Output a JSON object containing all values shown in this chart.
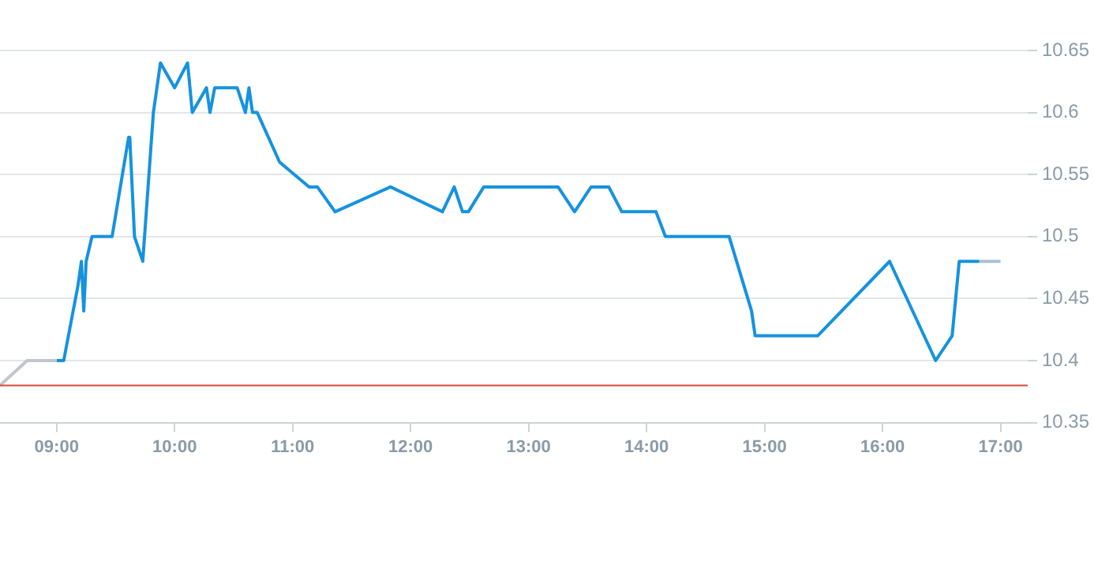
{
  "chart_data": {
    "type": "line",
    "legend": false,
    "grid": "y",
    "marker": "none",
    "line_style": "solid",
    "xlim": [
      8.52,
      17.23
    ],
    "ylim": [
      10.35,
      10.65
    ],
    "xticks": [
      {
        "value": 9,
        "label": "09:00"
      },
      {
        "value": 10,
        "label": "10:00"
      },
      {
        "value": 11,
        "label": "11:00"
      },
      {
        "value": 12,
        "label": "12:00"
      },
      {
        "value": 13,
        "label": "13:00"
      },
      {
        "value": 14,
        "label": "14:00"
      },
      {
        "value": 15,
        "label": "15:00"
      },
      {
        "value": 16,
        "label": "16:00"
      },
      {
        "value": 17,
        "label": "17:00"
      }
    ],
    "yticks": [
      10.35,
      10.4,
      10.45,
      10.5,
      10.55,
      10.6,
      10.65
    ],
    "ref_lines": [
      {
        "axis": "y",
        "value": 10.38,
        "color": "#d9443c"
      }
    ],
    "series": [
      {
        "color": "#c2c6cc",
        "x": [
          8.52,
          8.75,
          9.0
        ],
        "values": [
          10.38,
          10.4,
          10.4
        ]
      },
      {
        "color": "#1592e0",
        "x": [
          9.0,
          9.06,
          9.18,
          9.21,
          9.23,
          9.25,
          9.3,
          9.47,
          9.61,
          9.62,
          9.66,
          9.73,
          9.82,
          9.88,
          10.0,
          10.11,
          10.15,
          10.27,
          10.3,
          10.34,
          10.53,
          10.6,
          10.63,
          10.66,
          10.7,
          10.89,
          11.14,
          11.21,
          11.36,
          11.83,
          12.27,
          12.37,
          12.44,
          12.49,
          12.62,
          13.25,
          13.39,
          13.53,
          13.68,
          13.79,
          14.08,
          14.16,
          14.7,
          14.89,
          14.92,
          15.45,
          16.06,
          16.45,
          16.59,
          16.65,
          16.82
        ],
        "values": [
          10.4,
          10.4,
          10.46,
          10.48,
          10.44,
          10.48,
          10.5,
          10.5,
          10.58,
          10.58,
          10.5,
          10.48,
          10.6,
          10.64,
          10.62,
          10.64,
          10.6,
          10.62,
          10.6,
          10.62,
          10.62,
          10.6,
          10.62,
          10.6,
          10.6,
          10.56,
          10.54,
          10.54,
          10.52,
          10.54,
          10.52,
          10.54,
          10.52,
          10.52,
          10.54,
          10.54,
          10.52,
          10.54,
          10.54,
          10.52,
          10.52,
          10.5,
          10.5,
          10.44,
          10.42,
          10.42,
          10.48,
          10.4,
          10.42,
          10.48,
          10.48
        ]
      },
      {
        "color": "#a9c0d4",
        "x": [
          16.82,
          17.0
        ],
        "values": [
          10.48,
          10.48
        ]
      }
    ]
  }
}
